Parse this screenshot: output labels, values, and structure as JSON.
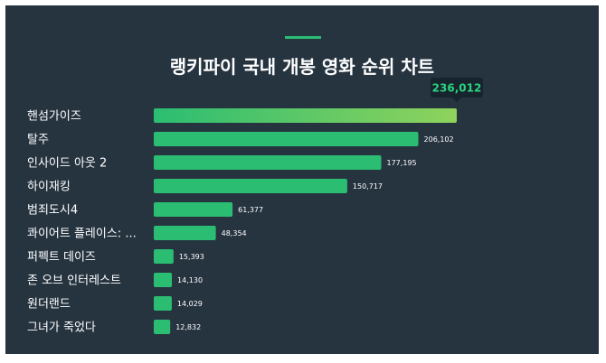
{
  "chart_data": {
    "type": "bar",
    "orientation": "horizontal",
    "title": "랭키파이 국내 개봉 영화 순위 차트",
    "categories": [
      "핸섬가이즈",
      "탈주",
      "인사이드 아웃 2",
      "하이재킹",
      "범죄도시4",
      "콰이어트 플레이스: ...",
      "퍼펙트 데이즈",
      "존 오브 인터레스트",
      "원더랜드",
      "그녀가 죽었다"
    ],
    "values": [
      236012,
      206102,
      177195,
      150717,
      61377,
      48354,
      15393,
      14130,
      14029,
      12832
    ],
    "value_labels": [
      "236,012",
      "206,102",
      "177,195",
      "150,717",
      "61,377",
      "48,354",
      "15,393",
      "14,130",
      "14,029",
      "12,832"
    ],
    "highlight_index": 0,
    "xlim": [
      0,
      236012
    ],
    "grid": false,
    "legend": "none"
  },
  "colors": {
    "background": "#263440",
    "bar": "#2bbd72",
    "bar_highlight_end": "#8fd35c",
    "tooltip_bg": "#17232d",
    "tooltip_text": "#2bd47f",
    "accent": "#2bbd72"
  }
}
